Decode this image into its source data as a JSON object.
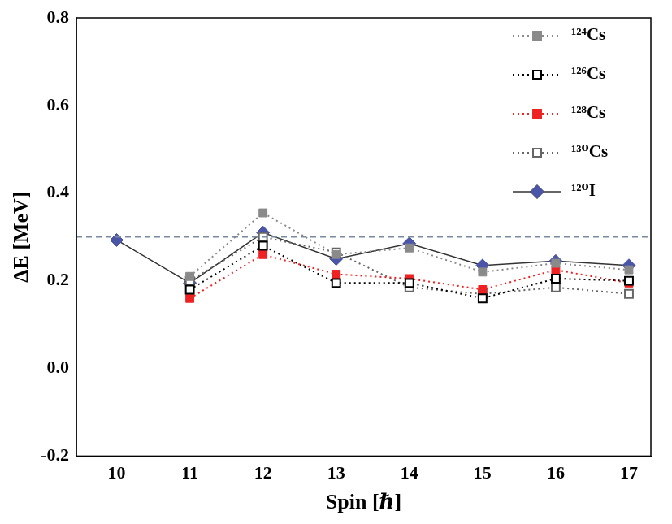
{
  "chart_data": {
    "type": "line",
    "x_label": "Spin [ℏ]",
    "y_label": "ΔE [MeV]",
    "x": [
      10,
      11,
      12,
      13,
      14,
      15,
      16,
      17
    ],
    "series": [
      {
        "name": "¹²⁴Cs",
        "color": "#8a8a8a",
        "marker": "square",
        "line_style": "dotted",
        "values": [
          null,
          0.21,
          0.355,
          0.26,
          0.275,
          0.22,
          0.24,
          0.225
        ]
      },
      {
        "name": "¹²⁶Cs",
        "color": "#000000",
        "marker": "open_square",
        "line_style": "dotted",
        "values": [
          null,
          0.18,
          0.28,
          0.195,
          0.195,
          0.16,
          0.205,
          0.2
        ]
      },
      {
        "name": "¹²⁸Cs",
        "color": "#ee2222",
        "marker": "square",
        "line_style": "dotted",
        "values": [
          null,
          0.16,
          0.26,
          0.215,
          0.205,
          0.18,
          0.225,
          0.195
        ]
      },
      {
        "name": "¹³⁰Cs",
        "color": "#666666",
        "marker": "open_square",
        "line_style": "dotted",
        "values": [
          null,
          0.2,
          0.3,
          0.265,
          0.185,
          0.17,
          0.185,
          0.17
        ]
      },
      {
        "name": "¹²⁰I",
        "color": "#4a55a8",
        "marker": "diamond",
        "line_style": "solid",
        "values": [
          0.293,
          0.195,
          0.31,
          0.25,
          0.285,
          0.235,
          0.245,
          0.235
        ]
      }
    ],
    "reference_line": 0.3,
    "xlim": [
      9.45,
      17.3
    ],
    "xticks": [
      10,
      11,
      12,
      13,
      14,
      15,
      16,
      17
    ],
    "ylim": [
      -0.2,
      0.8
    ],
    "yticks": [
      -0.2,
      {
        "value": 0,
        "label": "0.0"
      },
      0.2,
      0.4,
      0.6,
      0.8
    ],
    "grid": false,
    "legend": "upper right"
  }
}
